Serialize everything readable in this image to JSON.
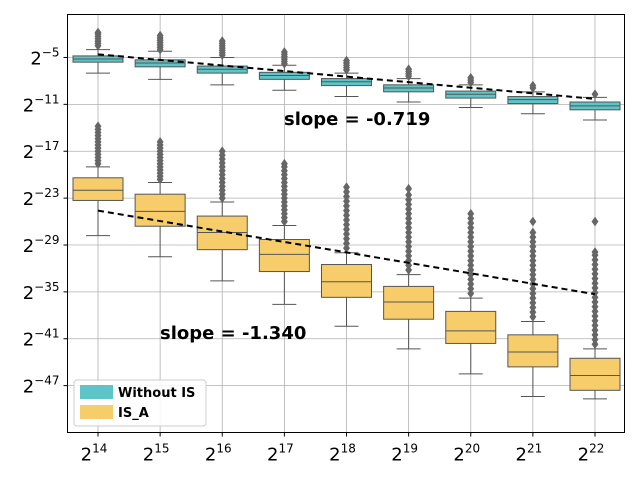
{
  "colors": {
    "without_is": "#5fc4c8",
    "is_a": "#f7cd6b",
    "box_edge": "#555555",
    "outlier": "#666666",
    "grid": "#b0b0b0",
    "trend": "#000000"
  },
  "chart_data": {
    "type": "boxplot",
    "title": "",
    "xlabel": "",
    "ylabel": "",
    "x_scale": "log2",
    "y_scale": "log2",
    "categories": [
      {
        "base": "2",
        "exp": "14"
      },
      {
        "base": "2",
        "exp": "15"
      },
      {
        "base": "2",
        "exp": "16"
      },
      {
        "base": "2",
        "exp": "17"
      },
      {
        "base": "2",
        "exp": "18"
      },
      {
        "base": "2",
        "exp": "19"
      },
      {
        "base": "2",
        "exp": "20"
      },
      {
        "base": "2",
        "exp": "21"
      },
      {
        "base": "2",
        "exp": "22"
      }
    ],
    "y_ticks": [
      {
        "base": "2",
        "exp": "−5",
        "value": -5
      },
      {
        "base": "2",
        "exp": "−11",
        "value": -11
      },
      {
        "base": "2",
        "exp": "−17",
        "value": -17
      },
      {
        "base": "2",
        "exp": "−23",
        "value": -23
      },
      {
        "base": "2",
        "exp": "−29",
        "value": -29
      },
      {
        "base": "2",
        "exp": "−35",
        "value": -35
      },
      {
        "base": "2",
        "exp": "−41",
        "value": -41
      },
      {
        "base": "2",
        "exp": "−47",
        "value": -47
      }
    ],
    "ylim_log2": [
      -53,
      0.5
    ],
    "grid": true,
    "legend_position": "lower-left",
    "series": [
      {
        "name": "Without IS",
        "color_key": "without_is",
        "boxes": [
          {
            "whisker_low": -7.0,
            "q1": -5.6,
            "median": -5.2,
            "q3": -4.8,
            "whisker_high": -4.0,
            "outliers": [
              -3.5,
              -3.2,
              -2.9,
              -2.6,
              -2.3,
              -2.0,
              -1.8
            ]
          },
          {
            "whisker_low": -7.8,
            "q1": -6.2,
            "median": -5.7,
            "q3": -5.3,
            "whisker_high": -4.2,
            "outliers": [
              -4.0,
              -3.7,
              -3.4,
              -3.1,
              -2.8,
              -2.5,
              -2.2
            ]
          },
          {
            "whisker_low": -8.5,
            "q1": -7.0,
            "median": -6.5,
            "q3": -6.1,
            "whisker_high": -5.0,
            "outliers": [
              -4.7,
              -4.4,
              -4.1,
              -3.8,
              -3.5,
              -3.2,
              -2.9
            ]
          },
          {
            "whisker_low": -9.2,
            "q1": -7.8,
            "median": -7.3,
            "q3": -6.9,
            "whisker_high": -6.0,
            "outliers": [
              -5.8,
              -5.5,
              -5.2,
              -4.9,
              -4.6,
              -4.3
            ]
          },
          {
            "whisker_low": -10.0,
            "q1": -8.6,
            "median": -8.1,
            "q3": -7.7,
            "whisker_high": -7.0,
            "outliers": [
              -6.6,
              -6.3,
              -6.0,
              -5.7,
              -5.4
            ]
          },
          {
            "whisker_low": -10.7,
            "q1": -9.4,
            "median": -8.9,
            "q3": -8.5,
            "whisker_high": -7.7,
            "outliers": [
              -7.4,
              -7.1,
              -6.8,
              -6.5
            ]
          },
          {
            "whisker_low": -11.4,
            "q1": -10.2,
            "median": -9.7,
            "q3": -9.3,
            "whisker_high": -8.5,
            "outliers": [
              -8.2,
              -7.9,
              -7.6
            ]
          },
          {
            "whisker_low": -12.2,
            "q1": -10.9,
            "median": -10.4,
            "q3": -10.0,
            "whisker_high": -9.4,
            "outliers": [
              -8.9,
              -8.6
            ]
          },
          {
            "whisker_low": -13.0,
            "q1": -11.7,
            "median": -11.2,
            "q3": -10.7,
            "whisker_high": -10.1,
            "outliers": [
              -9.7
            ]
          }
        ],
        "trend": {
          "slope": -0.719,
          "label": "slope = -0.719",
          "start": -4.6,
          "end": -10.3
        }
      },
      {
        "name": "IS_A",
        "color_key": "is_a",
        "boxes": [
          {
            "whisker_low": -27.8,
            "q1": -23.3,
            "median": -22.0,
            "q3": -20.4,
            "whisker_high": -19.0,
            "outliers": [
              -18.6,
              -18.2,
              -17.8,
              -17.4,
              -17.0,
              -16.6,
              -16.2,
              -15.8,
              -15.4,
              -15.0,
              -14.6,
              -14.2,
              -13.8
            ]
          },
          {
            "whisker_low": -30.5,
            "q1": -26.6,
            "median": -24.7,
            "q3": -22.5,
            "whisker_high": -21.0,
            "outliers": [
              -20.6,
              -20.2,
              -19.8,
              -19.4,
              -19.0,
              -18.6,
              -18.2,
              -17.8,
              -17.4,
              -17.0,
              -16.6,
              -16.2,
              -15.8
            ]
          },
          {
            "whisker_low": -33.6,
            "q1": -29.6,
            "median": -27.4,
            "q3": -25.3,
            "whisker_high": -23.5,
            "outliers": [
              -23.0,
              -22.5,
              -22.0,
              -21.5,
              -21.0,
              -20.5,
              -20.0,
              -19.5,
              -19.0,
              -18.5,
              -18.0,
              -17.5,
              -17.0
            ]
          },
          {
            "whisker_low": -36.6,
            "q1": -32.4,
            "median": -30.2,
            "q3": -28.3,
            "whisker_high": -26.5,
            "outliers": [
              -26.0,
              -25.5,
              -25.0,
              -24.5,
              -24.0,
              -23.5,
              -23.0,
              -22.5,
              -22.0,
              -21.5,
              -21.0,
              -20.5,
              -20.0,
              -19.5,
              -19.0,
              -18.6
            ]
          },
          {
            "whisker_low": -39.4,
            "q1": -35.7,
            "median": -33.7,
            "q3": -31.5,
            "whisker_high": -30.0,
            "outliers": [
              -29.4,
              -28.8,
              -28.2,
              -27.6,
              -27.0,
              -26.4,
              -25.8,
              -25.2,
              -24.6,
              -24.0,
              -23.4,
              -22.8,
              -22.2,
              -21.6
            ]
          },
          {
            "whisker_low": -42.3,
            "q1": -38.5,
            "median": -36.3,
            "q3": -34.3,
            "whisker_high": -32.8,
            "outliers": [
              -32.2,
              -31.6,
              -31.0,
              -30.4,
              -29.8,
              -29.2,
              -28.6,
              -28.0,
              -27.4,
              -26.8,
              -26.2,
              -25.6,
              -25.0,
              -24.4,
              -23.8,
              -23.2,
              -22.6,
              -21.8
            ]
          },
          {
            "whisker_low": -45.5,
            "q1": -41.6,
            "median": -40.0,
            "q3": -37.5,
            "whisker_high": -35.8,
            "outliers": [
              -35.2,
              -34.6,
              -34.0,
              -33.4,
              -32.8,
              -32.2,
              -31.6,
              -31.0,
              -30.4,
              -29.8,
              -29.2,
              -28.6,
              -28.0,
              -27.4,
              -26.8,
              -26.2,
              -25.6,
              -25.0
            ]
          },
          {
            "whisker_low": -48.4,
            "q1": -44.6,
            "median": -42.7,
            "q3": -40.5,
            "whisker_high": -38.8,
            "outliers": [
              -38.2,
              -37.6,
              -37.0,
              -36.4,
              -35.8,
              -35.2,
              -34.6,
              -34.0,
              -33.4,
              -32.8,
              -32.2,
              -31.6,
              -31.0,
              -30.4,
              -29.8,
              -29.2,
              -28.6,
              -28.0,
              -27.4,
              -26.0
            ]
          },
          {
            "whisker_low": -48.7,
            "q1": -47.6,
            "median": -45.7,
            "q3": -43.5,
            "whisker_high": -42.3,
            "outliers": [
              -41.7,
              -41.1,
              -40.5,
              -39.9,
              -39.3,
              -38.7,
              -38.1,
              -37.5,
              -36.9,
              -36.3,
              -35.7,
              -35.1,
              -34.5,
              -33.9,
              -33.3,
              -32.7,
              -32.1,
              -31.5,
              -30.9,
              -30.3,
              -29.9,
              -26.0
            ]
          }
        ],
        "trend": {
          "slope": -1.34,
          "label": "slope = -1.340",
          "start": -24.6,
          "end": -35.3
        }
      }
    ]
  }
}
